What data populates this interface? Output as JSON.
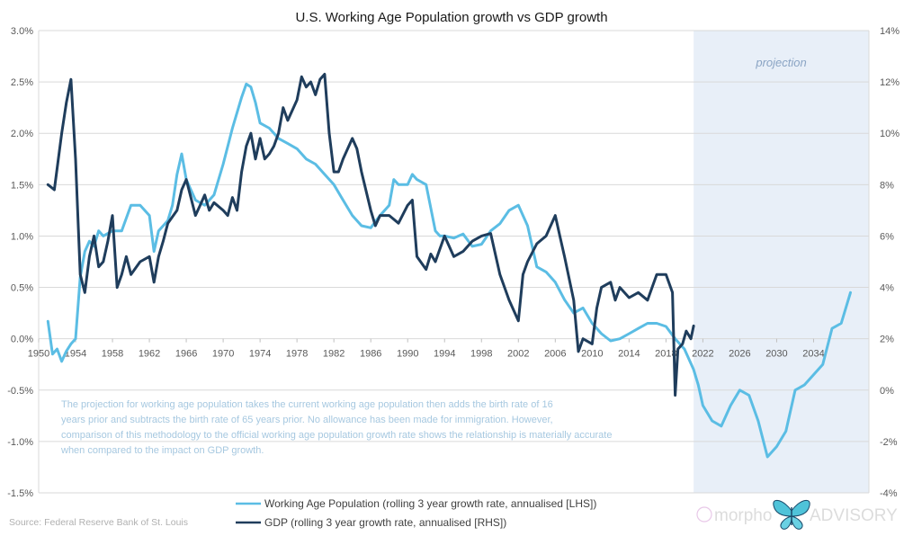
{
  "chart_data": {
    "type": "line",
    "title": "U.S. Working Age Population growth vs GDP growth",
    "x_range": [
      1950,
      2040
    ],
    "x_ticks": [
      "1950",
      "1954",
      "1958",
      "1962",
      "1966",
      "1970",
      "1974",
      "1978",
      "1982",
      "1986",
      "1990",
      "1994",
      "1998",
      "2002",
      "2006",
      "2010",
      "2014",
      "2018",
      "2022",
      "2026",
      "2030",
      "2034"
    ],
    "y_left": {
      "range": [
        -1.5,
        3.0
      ],
      "ticks": [
        "3.0%",
        "2.5%",
        "2.0%",
        "1.5%",
        "1.0%",
        "0.5%",
        "0.0%",
        "-0.5%",
        "-1.0%",
        "-1.5%"
      ]
    },
    "y_right": {
      "range": [
        -4,
        14
      ],
      "ticks": [
        "14%",
        "12%",
        "10%",
        "8%",
        "6%",
        "4%",
        "2%",
        "0%",
        "-2%",
        "-4%"
      ]
    },
    "grid": true,
    "legend_position": "bottom",
    "projection_band": {
      "x_start": 2021,
      "x_end": 2038,
      "label": "projection",
      "color": "#e8eff8"
    },
    "annotation": "The projection for working age population takes the current working age population then adds the birth rate of 16 years prior and subtracts the birth rate of 65 years prior. No allowance has been made for immigration. However, comparison of this methodology to the official working age population growth rate shows the relationship is materially accurate when compared to the impact on GDP growth.",
    "source": "Source: Federal Reserve Bank of St. Louis",
    "series": [
      {
        "name": "Working Age Population (rolling 3 year growth rate, annualised [LHS])",
        "axis": "left",
        "color": "#5bbde4",
        "x": [
          1951,
          1951.5,
          1952,
          1952.5,
          1953,
          1953.5,
          1954,
          1954.5,
          1955,
          1955.5,
          1956,
          1956.5,
          1957,
          1958,
          1959,
          1960,
          1961,
          1962,
          1962.5,
          1963,
          1964,
          1964.5,
          1965,
          1965.5,
          1966,
          1967,
          1968,
          1969,
          1970,
          1971,
          1972,
          1972.5,
          1973,
          1973.5,
          1974,
          1975,
          1976,
          1977,
          1978,
          1979,
          1980,
          1981,
          1982,
          1983,
          1984,
          1985,
          1986,
          1987,
          1988,
          1988.5,
          1989,
          1990,
          1990.5,
          1991,
          1992,
          1993,
          1993.5,
          1994,
          1995,
          1996,
          1997,
          1998,
          1999,
          2000,
          2001,
          2002,
          2003,
          2004,
          2005,
          2006,
          2007,
          2008,
          2009,
          2010,
          2011,
          2012,
          2013,
          2014,
          2015,
          2016,
          2017,
          2018,
          2019,
          2020,
          2021,
          2021.5,
          2022,
          2023,
          2024,
          2025,
          2026,
          2027,
          2028,
          2029,
          2030,
          2031,
          2032,
          2033,
          2034,
          2035,
          2036,
          2037,
          2038
        ],
        "values": [
          0.17,
          -0.15,
          -0.1,
          -0.22,
          -0.12,
          -0.05,
          0.0,
          0.6,
          0.85,
          0.95,
          0.9,
          1.05,
          1.0,
          1.05,
          1.05,
          1.3,
          1.3,
          1.2,
          0.85,
          1.05,
          1.15,
          1.3,
          1.6,
          1.8,
          1.55,
          1.35,
          1.3,
          1.4,
          1.7,
          2.05,
          2.35,
          2.48,
          2.45,
          2.3,
          2.1,
          2.05,
          1.95,
          1.9,
          1.85,
          1.75,
          1.7,
          1.6,
          1.5,
          1.35,
          1.2,
          1.1,
          1.08,
          1.2,
          1.3,
          1.55,
          1.5,
          1.5,
          1.6,
          1.55,
          1.5,
          1.05,
          1.0,
          1.0,
          0.98,
          1.02,
          0.9,
          0.92,
          1.05,
          1.12,
          1.25,
          1.3,
          1.1,
          0.7,
          0.65,
          0.55,
          0.38,
          0.25,
          0.3,
          0.15,
          0.05,
          -0.02,
          0.0,
          0.05,
          0.1,
          0.15,
          0.15,
          0.12,
          0.0,
          -0.1,
          -0.3,
          -0.45,
          -0.65,
          -0.8,
          -0.85,
          -0.65,
          -0.5,
          -0.55,
          -0.8,
          -1.15,
          -1.05,
          -0.9,
          -0.5,
          -0.45,
          -0.35,
          -0.25,
          0.1,
          0.15,
          0.45
        ]
      },
      {
        "name": "GDP (rolling 3 year growth rate, annualised [RHS])",
        "axis": "right",
        "color": "#1f3d5c",
        "x": [
          1951,
          1951.7,
          1952.5,
          1953,
          1953.5,
          1954,
          1954.5,
          1955,
          1955.5,
          1956,
          1956.5,
          1957,
          1957.5,
          1958,
          1958.5,
          1959,
          1959.5,
          1960,
          1961,
          1962,
          1962.5,
          1963,
          1963.5,
          1964,
          1965,
          1965.5,
          1966,
          1966.5,
          1967,
          1967.5,
          1968,
          1968.5,
          1969,
          1970,
          1970.5,
          1971,
          1971.5,
          1972,
          1972.5,
          1973,
          1973.5,
          1974,
          1974.5,
          1975,
          1975.5,
          1976,
          1976.5,
          1977,
          1978,
          1978.5,
          1979,
          1979.5,
          1980,
          1980.5,
          1981,
          1981.5,
          1982,
          1982.5,
          1983,
          1984,
          1984.5,
          1985,
          1986,
          1986.5,
          1987,
          1988,
          1989,
          1990,
          1990.5,
          1991,
          1992,
          1992.5,
          1993,
          1994,
          1995,
          1996,
          1997,
          1998,
          1999,
          2000,
          2001,
          2002,
          2002.5,
          2003,
          2004,
          2005,
          2006,
          2006.5,
          2007,
          2008,
          2008.5,
          2009,
          2010,
          2010.5,
          2011,
          2012,
          2012.5,
          2013,
          2014,
          2015,
          2016,
          2017,
          2018,
          2018.7,
          2019,
          2019.3,
          2019.8,
          2020.2,
          2020.7,
          2021
        ],
        "values": [
          8.0,
          7.8,
          10.0,
          11.2,
          12.1,
          9.0,
          4.5,
          3.8,
          5.2,
          6.0,
          4.8,
          5.0,
          5.8,
          6.8,
          4.0,
          4.5,
          5.2,
          4.5,
          5.0,
          5.2,
          4.2,
          5.2,
          5.8,
          6.5,
          7.0,
          7.8,
          8.2,
          7.5,
          6.8,
          7.2,
          7.6,
          7.0,
          7.3,
          7.0,
          6.8,
          7.5,
          7.0,
          8.5,
          9.5,
          10.0,
          9.0,
          9.8,
          9.0,
          9.2,
          9.5,
          10.0,
          11.0,
          10.5,
          11.3,
          12.2,
          11.8,
          12.0,
          11.5,
          12.1,
          12.3,
          10.0,
          8.5,
          8.5,
          9.0,
          9.8,
          9.4,
          8.5,
          7.0,
          6.4,
          6.8,
          6.8,
          6.5,
          7.2,
          7.4,
          5.2,
          4.7,
          5.3,
          5.0,
          6.0,
          5.2,
          5.4,
          5.8,
          6.0,
          6.1,
          4.5,
          3.5,
          2.7,
          4.5,
          5.0,
          5.7,
          6.0,
          6.8,
          6.0,
          5.2,
          3.5,
          1.5,
          2.0,
          1.8,
          3.2,
          4.0,
          4.2,
          3.5,
          4.0,
          3.6,
          3.8,
          3.5,
          4.5,
          4.5,
          3.8,
          -0.2,
          1.6,
          1.8,
          2.3,
          2.0,
          2.5
        ]
      }
    ]
  },
  "legend": {
    "items": [
      "Working Age Population (rolling 3 year growth rate, annualised [LHS])",
      "GDP (rolling 3 year growth rate, annualised [RHS])"
    ]
  },
  "logo": {
    "text_left": "morpho",
    "text_right": "ADVISORY",
    "symbol": "butterfly-icon"
  }
}
